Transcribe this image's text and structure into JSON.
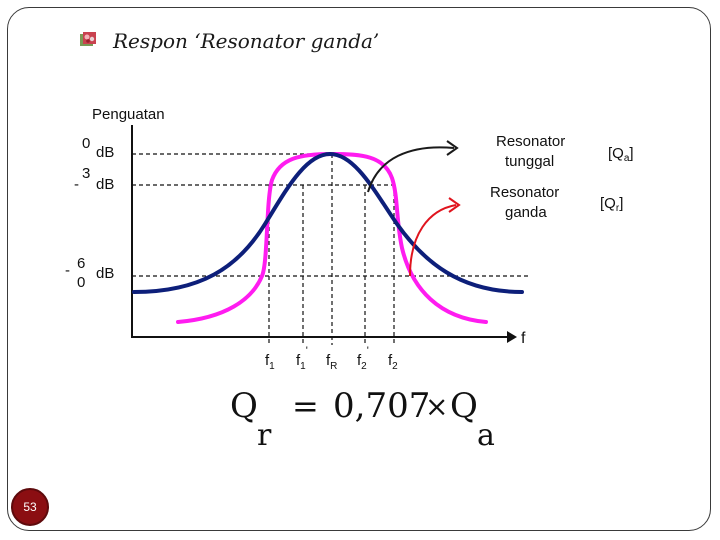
{
  "slide": {
    "title": "Respon ‘Resonator ganda’",
    "page_number": "53"
  },
  "figure": {
    "y_axis_title": "Penguatan",
    "x_axis_letter": "f",
    "db_labels": {
      "zero_num": "0",
      "zero_unit": "dB",
      "minus3_sign": "-",
      "minus3_num": "3",
      "minus3_unit": "dB",
      "minus60_sign": "-",
      "minus60_num_top": "6",
      "minus60_num_bottom": "0",
      "minus60_unit": "dB"
    },
    "freq_labels": {
      "f1_base": "f",
      "f1_sub": "1",
      "f1p_base": "f",
      "f1p_sub": "1",
      "f1p_mark": "'",
      "fR_base": "f",
      "fR_sub": "R",
      "f2p_base": "f",
      "f2p_sub": "2",
      "f2p_mark": "'",
      "f2_base": "f",
      "f2_sub": "2"
    },
    "legend": {
      "single_line1": "Resonator",
      "single_line2": "tunggal",
      "single_q_open": "[Q",
      "single_q_sub": "a",
      "single_q_close": "]",
      "double_line1": "Resonator",
      "double_line2": "ganda",
      "double_q_open": "[Q",
      "double_q_sub": "r",
      "double_q_close": "]"
    },
    "colors": {
      "single_curve": "#0d1f7a",
      "double_curve": "#ff1cf0",
      "arrow_single": "#1a1a1a",
      "arrow_double": "#e0141e"
    }
  },
  "equation": {
    "lhs": "Q",
    "lhs_sub": "r",
    "equals": "=",
    "coefficient": "0,707",
    "times": "×",
    "rhs": "Q",
    "rhs_sub": "a"
  }
}
